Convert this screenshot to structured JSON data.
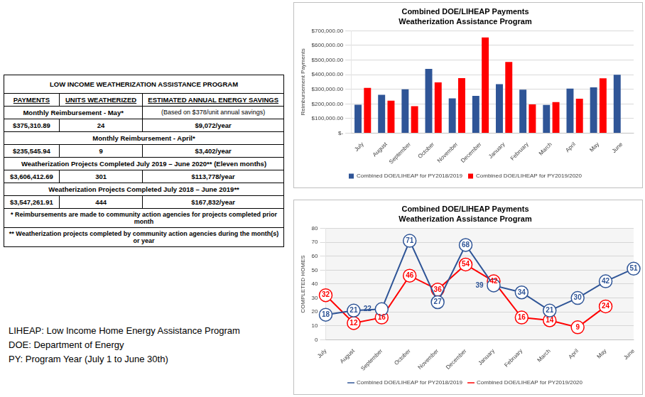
{
  "table": {
    "title": "LOW INCOME WEATHERIZATION ASSISTANCE PROGRAM",
    "columns": [
      "PAYMENTS",
      "UNITS WEATHERIZED",
      "ESTIMATED ANNUAL ENERGY SAVINGS"
    ],
    "sections": [
      {
        "heading": "Monthly Reimbursement - May*",
        "note": "(Based on $378/unit annual savings)",
        "cells": [
          "$375,310.89",
          "24",
          "$9,072/year"
        ]
      },
      {
        "heading": "Monthly Reimbursement - April*",
        "cells": [
          "$235,545.94",
          "9",
          "$3,402/year"
        ]
      },
      {
        "heading": "Weatherization Projects Completed July 2019 – June 2020** (Eleven months)",
        "cells": [
          "$3,606,412.69",
          "301",
          "$113,778/year"
        ]
      },
      {
        "heading": "Weatherization Projects Completed July 2018 – June 2019**",
        "cells": [
          "$3,547,261.91",
          "444",
          "$167,832/year"
        ]
      }
    ],
    "footnotes": [
      "* Reimbursements are made to community action agencies for projects completed prior month",
      "** Weatherization projects completed by community action agencies during the month(s) or year"
    ]
  },
  "notes": [
    "LIHEAP: Low Income Home Energy Assistance Program",
    "DOE: Department of Energy",
    "PY: Program Year (July 1 to June 30th)"
  ],
  "chart_data": [
    {
      "type": "bar",
      "title": "Combined DOE/LIHEAP Payments",
      "subtitle": "Weatherization Assistance Program",
      "y_label": "Reimbursement Payments",
      "categories": [
        "July",
        "August",
        "September",
        "October",
        "November",
        "December",
        "January",
        "February",
        "March",
        "April",
        "May",
        "June"
      ],
      "series": [
        {
          "name": "Combined DOE/LIHEAP for PY2018/2019",
          "color": "#2f5597",
          "values": [
            195000,
            262000,
            300000,
            440000,
            238000,
            255000,
            335000,
            298000,
            193000,
            305000,
            313000,
            400000
          ]
        },
        {
          "name": "Combined DOE/LIHEAP for PY2019/2020",
          "color": "#ff0000",
          "values": [
            310000,
            222000,
            185000,
            348000,
            377000,
            655000,
            487000,
            197000,
            213000,
            235545.94,
            375310.89,
            null
          ]
        }
      ],
      "ylim": [
        0,
        700000
      ],
      "yticks": [
        {
          "value": 0,
          "label": "$-"
        },
        {
          "value": 100000,
          "label": "$100,000.00"
        },
        {
          "value": 200000,
          "label": "$200,000.00"
        },
        {
          "value": 300000,
          "label": "$300,000.00"
        },
        {
          "value": 400000,
          "label": "$400,000.00"
        },
        {
          "value": 500000,
          "label": "$500,000.00"
        },
        {
          "value": 600000,
          "label": "$600,000.00"
        },
        {
          "value": 700000,
          "label": "$700,000.00"
        }
      ],
      "grid": "y",
      "legend": "bottom"
    },
    {
      "type": "line",
      "title": "Combined DOE/LIHEAP Payments",
      "subtitle": "Weatherization Assistance Program",
      "y_label": "COMPLETED HOMES",
      "categories": [
        "July",
        "August",
        "September",
        "October",
        "November",
        "December",
        "January",
        "February",
        "March",
        "April",
        "May",
        "June"
      ],
      "series": [
        {
          "name": "Combined DOE/LIHEAP for PY2018/2019",
          "color": "#2f5597",
          "marker": "circle",
          "values": [
            18,
            21,
            22,
            71,
            27,
            68,
            39,
            34,
            21,
            30,
            42,
            51
          ]
        },
        {
          "name": "Combined DOE/LIHEAP for PY2019/2020",
          "color": "#ff0000",
          "marker": "circle",
          "values": [
            32,
            12,
            16,
            46,
            36,
            54,
            42,
            16,
            14,
            9,
            24,
            null
          ]
        }
      ],
      "ylim": [
        0,
        80
      ],
      "yticks": [
        0,
        10,
        20,
        30,
        40,
        50,
        60,
        70,
        80
      ],
      "grid": "y",
      "legend": "bottom",
      "data_labels": true
    }
  ]
}
